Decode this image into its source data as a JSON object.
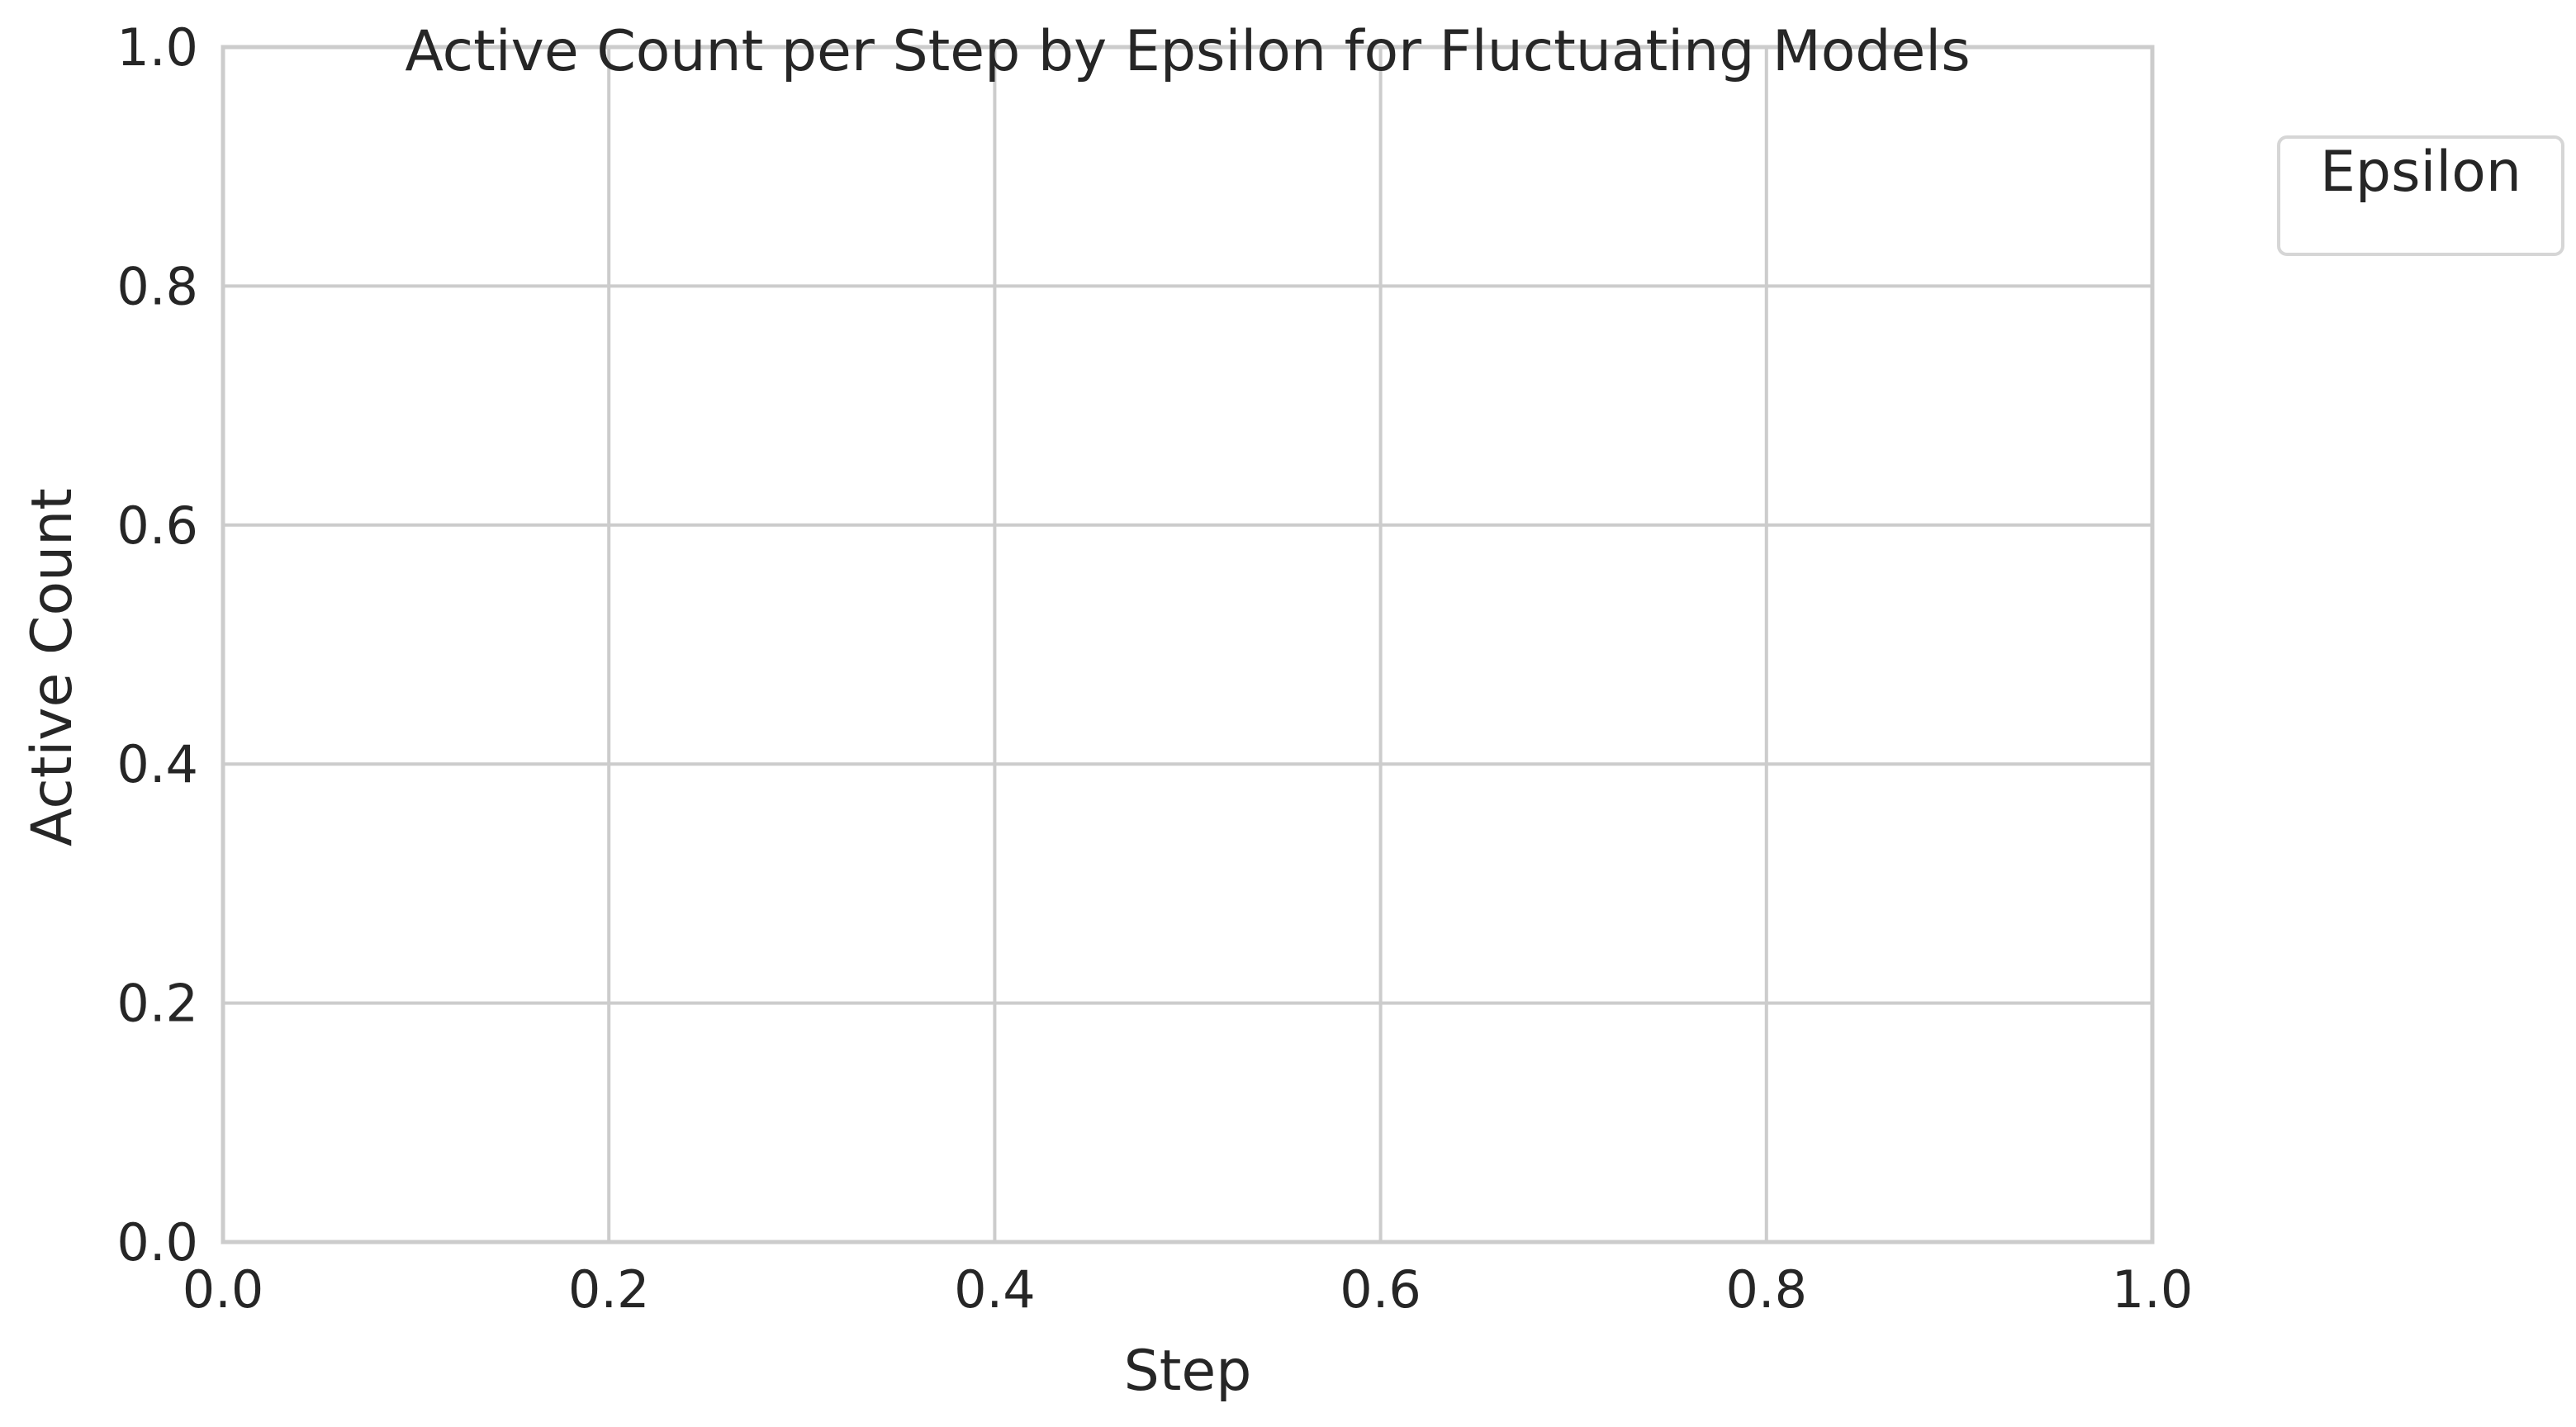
{
  "chart_data": {
    "type": "line",
    "title": "Active Count per Step by Epsilon for Fluctuating Models",
    "xlabel": "Step",
    "ylabel": "Active Count",
    "xlim": [
      0.0,
      1.0
    ],
    "ylim": [
      0.0,
      1.0
    ],
    "x_ticks": [
      0.0,
      0.2,
      0.4,
      0.6,
      0.8,
      1.0
    ],
    "y_ticks": [
      0.0,
      0.2,
      0.4,
      0.6,
      0.8,
      1.0
    ],
    "x_tick_labels": [
      "0.0",
      "0.2",
      "0.4",
      "0.6",
      "0.8",
      "1.0"
    ],
    "y_tick_labels": [
      "0.0",
      "0.2",
      "0.4",
      "0.6",
      "0.8",
      "1.0"
    ],
    "grid": true,
    "legend": {
      "title": "Epsilon",
      "placement": "outside-top-right",
      "entries": []
    },
    "series": []
  },
  "colors": {
    "grid": "#cccccc",
    "frame": "#cccccc",
    "text": "#262626",
    "background": "#ffffff"
  }
}
